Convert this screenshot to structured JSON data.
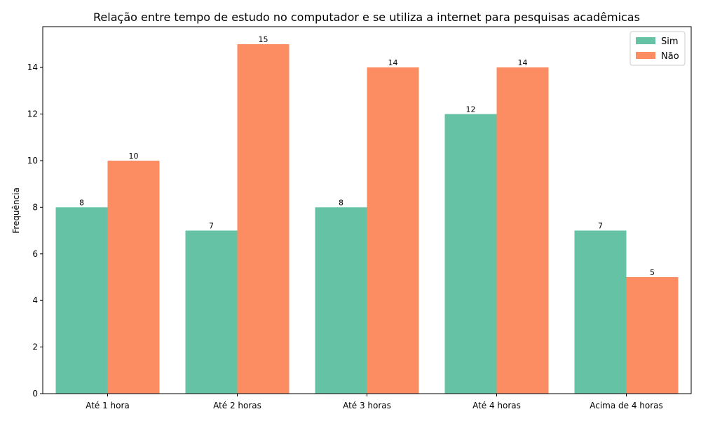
{
  "chart_data": {
    "type": "bar",
    "title": "Relação entre tempo de estudo no computador e se utiliza a internet para pesquisas acadêmicas",
    "xlabel": "",
    "ylabel": "Frequência",
    "categories": [
      "Até 1 hora",
      "Até 2 horas",
      "Até 3 horas",
      "Até 4 horas",
      "Acima de 4 horas"
    ],
    "series": [
      {
        "name": "Sim",
        "values": [
          8,
          7,
          8,
          12,
          7
        ],
        "color": "#66c2a5"
      },
      {
        "name": "Não",
        "values": [
          10,
          15,
          14,
          14,
          5
        ],
        "color": "#fc8d62"
      }
    ],
    "ylim": [
      0,
      15.75
    ],
    "yticks": [
      0,
      2,
      4,
      6,
      8,
      10,
      12,
      14
    ],
    "grid": false,
    "legend": "top-right",
    "show_data_labels": true
  }
}
